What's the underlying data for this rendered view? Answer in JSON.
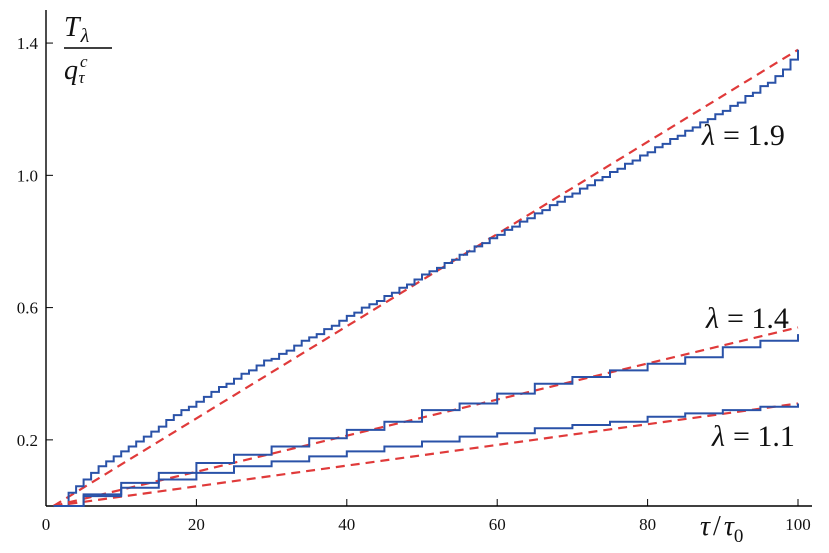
{
  "chart_data": {
    "type": "line",
    "xlim": [
      0,
      100
    ],
    "ylim": [
      0,
      1.5
    ],
    "x_ticks": [
      0,
      20,
      40,
      60,
      80,
      100
    ],
    "y_ticks": [
      0.2,
      0.6,
      1.0,
      1.4
    ],
    "x_tick_labels": [
      "0",
      "20",
      "40",
      "60",
      "80",
      "100"
    ],
    "y_tick_labels": [
      "0.2",
      "0.6",
      "1.0",
      "1.4"
    ],
    "xlabel": "τ/τ0",
    "ylabel": "Tλ / q_τ^c",
    "colors": {
      "step": "#2a52a8",
      "dashed": "#e03a3a",
      "axis": "#000000"
    },
    "series": [
      {
        "name": "λ = 1.9",
        "label": {
          "lambda": "λ",
          "eq": "= 1.9"
        },
        "step_x": [
          1.5,
          3,
          4,
          5,
          6,
          7,
          8,
          9,
          10,
          11,
          12,
          13,
          14,
          15,
          16,
          17,
          18,
          19,
          20,
          21,
          22,
          23,
          24,
          25,
          26,
          27,
          28,
          29,
          30,
          31,
          32,
          33,
          34,
          35,
          36,
          37,
          38,
          39,
          40,
          41,
          42,
          43,
          44,
          45,
          46,
          47,
          48,
          49,
          50,
          51,
          52,
          53,
          54,
          55,
          56,
          57,
          58,
          59,
          60,
          61,
          62,
          63,
          64,
          65,
          66,
          67,
          68,
          69,
          70,
          71,
          72,
          73,
          74,
          75,
          76,
          77,
          78,
          79,
          80,
          81,
          82,
          83,
          84,
          85,
          86,
          87,
          88,
          89,
          90,
          91,
          92,
          93,
          94,
          95,
          96,
          97,
          98,
          99,
          100
        ],
        "step_y": [
          0.0,
          0.04,
          0.06,
          0.08,
          0.1,
          0.12,
          0.135,
          0.15,
          0.165,
          0.18,
          0.195,
          0.21,
          0.225,
          0.24,
          0.26,
          0.275,
          0.29,
          0.3,
          0.315,
          0.33,
          0.345,
          0.36,
          0.37,
          0.385,
          0.4,
          0.41,
          0.425,
          0.44,
          0.445,
          0.46,
          0.47,
          0.485,
          0.5,
          0.51,
          0.52,
          0.535,
          0.545,
          0.56,
          0.575,
          0.585,
          0.6,
          0.61,
          0.62,
          0.635,
          0.645,
          0.66,
          0.67,
          0.685,
          0.7,
          0.71,
          0.72,
          0.735,
          0.745,
          0.76,
          0.77,
          0.785,
          0.795,
          0.81,
          0.82,
          0.835,
          0.845,
          0.86,
          0.87,
          0.885,
          0.895,
          0.91,
          0.92,
          0.935,
          0.945,
          0.96,
          0.97,
          0.985,
          0.995,
          1.01,
          1.02,
          1.035,
          1.045,
          1.06,
          1.07,
          1.085,
          1.095,
          1.11,
          1.12,
          1.135,
          1.145,
          1.16,
          1.17,
          1.185,
          1.195,
          1.21,
          1.22,
          1.24,
          1.25,
          1.27,
          1.28,
          1.3,
          1.32,
          1.35,
          1.38
        ],
        "fit_x": [
          1,
          100
        ],
        "fit_y": [
          0.0,
          1.38
        ]
      },
      {
        "name": "λ = 1.4",
        "label": {
          "lambda": "λ",
          "eq": "= 1.4"
        },
        "step_x": [
          1,
          5,
          10,
          15,
          20,
          25,
          30,
          35,
          40,
          45,
          50,
          55,
          60,
          65,
          70,
          75,
          80,
          85,
          90,
          95,
          100
        ],
        "step_y": [
          0.0,
          0.035,
          0.07,
          0.1,
          0.13,
          0.155,
          0.18,
          0.205,
          0.23,
          0.255,
          0.29,
          0.31,
          0.34,
          0.37,
          0.39,
          0.41,
          0.43,
          0.45,
          0.48,
          0.5,
          0.52
        ],
        "fit_x": [
          1,
          100
        ],
        "fit_y": [
          0.0,
          0.54
        ]
      },
      {
        "name": "λ = 1.1",
        "label": {
          "lambda": "λ",
          "eq": "= 1.1"
        },
        "step_x": [
          1,
          5,
          10,
          15,
          20,
          25,
          30,
          35,
          40,
          45,
          50,
          55,
          60,
          65,
          70,
          75,
          80,
          85,
          90,
          95,
          100
        ],
        "step_y": [
          0.0,
          0.03,
          0.055,
          0.08,
          0.1,
          0.12,
          0.135,
          0.15,
          0.165,
          0.18,
          0.195,
          0.21,
          0.22,
          0.235,
          0.245,
          0.255,
          0.27,
          0.28,
          0.29,
          0.3,
          0.31
        ],
        "fit_x": [
          1,
          100
        ],
        "fit_y": [
          0.0,
          0.31
        ]
      }
    ]
  }
}
